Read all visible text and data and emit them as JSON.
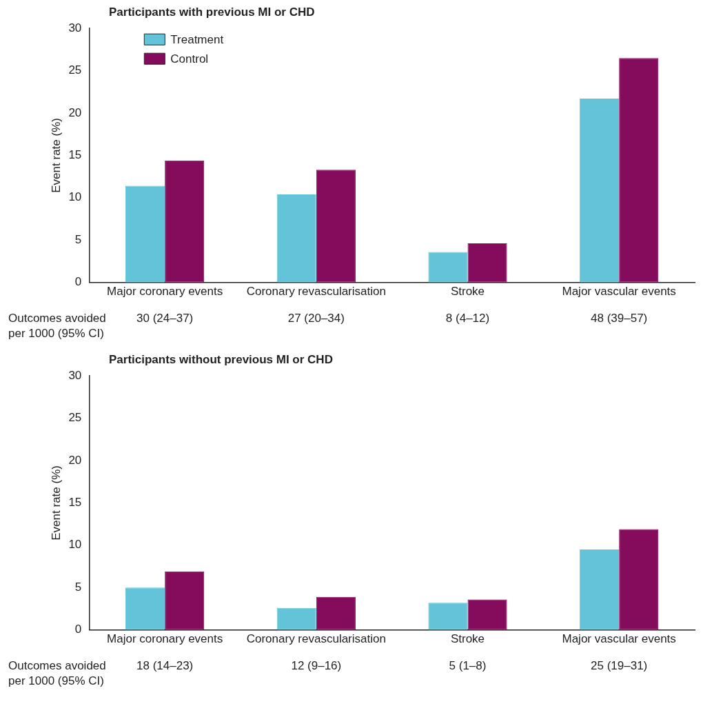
{
  "chart_data": [
    {
      "type": "bar",
      "title": "Participants with previous MI or CHD",
      "ylabel": "Event rate (%)",
      "categories": [
        "Major coronary events",
        "Coronary revascularisation",
        "Stroke",
        "Major vascular events"
      ],
      "series": [
        {
          "name": "Treatment",
          "color": "#62c3d9",
          "values": [
            11.4,
            10.4,
            3.6,
            21.7
          ]
        },
        {
          "name": "Control",
          "color": "#850b5c",
          "values": [
            14.4,
            13.3,
            4.6,
            26.5
          ]
        }
      ],
      "ylim": [
        0,
        30
      ],
      "yticks": [
        0,
        5,
        10,
        15,
        20,
        25,
        30
      ],
      "grid": false,
      "legend": "top left",
      "annotations": [
        "Outcomes avoided per 1000 (95% CI)",
        "30 (24–37)",
        "27 (20–34)",
        "8 (4–12)",
        "48 (39–57)"
      ]
    },
    {
      "type": "bar",
      "title": "Participants without previous MI or CHD",
      "ylabel": "Event rate (%)",
      "categories": [
        "Major coronary events",
        "Coronary revascularisation",
        "Stroke",
        "Major vascular events"
      ],
      "series": [
        {
          "color": "#62c3d9",
          "values": [
            5.0,
            2.6,
            3.2,
            9.5
          ]
        },
        {
          "color": "#850b5c",
          "values": [
            6.9,
            3.9,
            3.6,
            11.9
          ]
        }
      ],
      "ylim": [
        0,
        30
      ],
      "yticks": [
        0,
        5,
        10,
        15,
        20,
        25,
        30
      ],
      "grid": false,
      "annotations": [
        "Outcomes avoided per 1000 (95% CI)",
        "18 (14–23)",
        "12 (9–16)",
        "5 (1–8)",
        "25 (19–31)"
      ]
    }
  ]
}
